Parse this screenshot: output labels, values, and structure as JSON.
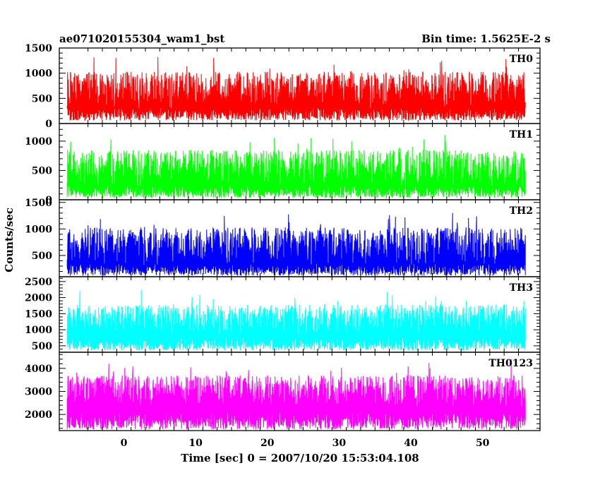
{
  "header": {
    "title": "ae071020155304_wam1_bst",
    "bin_time": "Bin time: 1.5625E-2 s"
  },
  "chart_data": [
    {
      "type": "line",
      "name": "TH0",
      "color": "#ff0000",
      "ylim": [
        0,
        1500
      ],
      "yticks": [
        0,
        500,
        1000,
        1500
      ],
      "x_range": [
        -7.9,
        56.0
      ],
      "baseline": 650,
      "amplitude": 380,
      "min": 60,
      "max": 1500
    },
    {
      "type": "line",
      "name": "TH1",
      "color": "#00ff00",
      "ylim": [
        0,
        1300
      ],
      "yticks": [
        0,
        500,
        1000
      ],
      "x_range": [
        -7.9,
        56.0
      ],
      "baseline": 520,
      "amplitude": 330,
      "min": 30,
      "max": 1280
    },
    {
      "type": "line",
      "name": "TH2",
      "color": "#0000ff",
      "ylim": [
        100,
        1550
      ],
      "yticks": [
        500,
        1000,
        1500
      ],
      "x_range": [
        -7.9,
        56.0
      ],
      "baseline": 650,
      "amplitude": 380,
      "min": 120,
      "max": 1550
    },
    {
      "type": "line",
      "name": "TH3",
      "color": "#00ffff",
      "ylim": [
        300,
        2650
      ],
      "yticks": [
        500,
        1000,
        1500,
        2000,
        2500
      ],
      "x_range": [
        -7.9,
        56.0
      ],
      "baseline": 1300,
      "amplitude": 480,
      "min": 350,
      "max": 2650
    },
    {
      "type": "line",
      "name": "TH0123",
      "color": "#ff00ff",
      "ylim": [
        1300,
        4700
      ],
      "yticks": [
        2000,
        3000,
        4000
      ],
      "x_range": [
        -7.9,
        56.0
      ],
      "baseline": 3000,
      "amplitude": 700,
      "min": 1350,
      "max": 4650
    }
  ],
  "x_axis": {
    "label": "Time [sec] 0 = 2007/10/20 15:53:04.108",
    "xlim": [
      -9,
      58
    ],
    "ticks": [
      0,
      10,
      20,
      30,
      40,
      50
    ]
  },
  "y_axis": {
    "label": "Counts/sec"
  }
}
